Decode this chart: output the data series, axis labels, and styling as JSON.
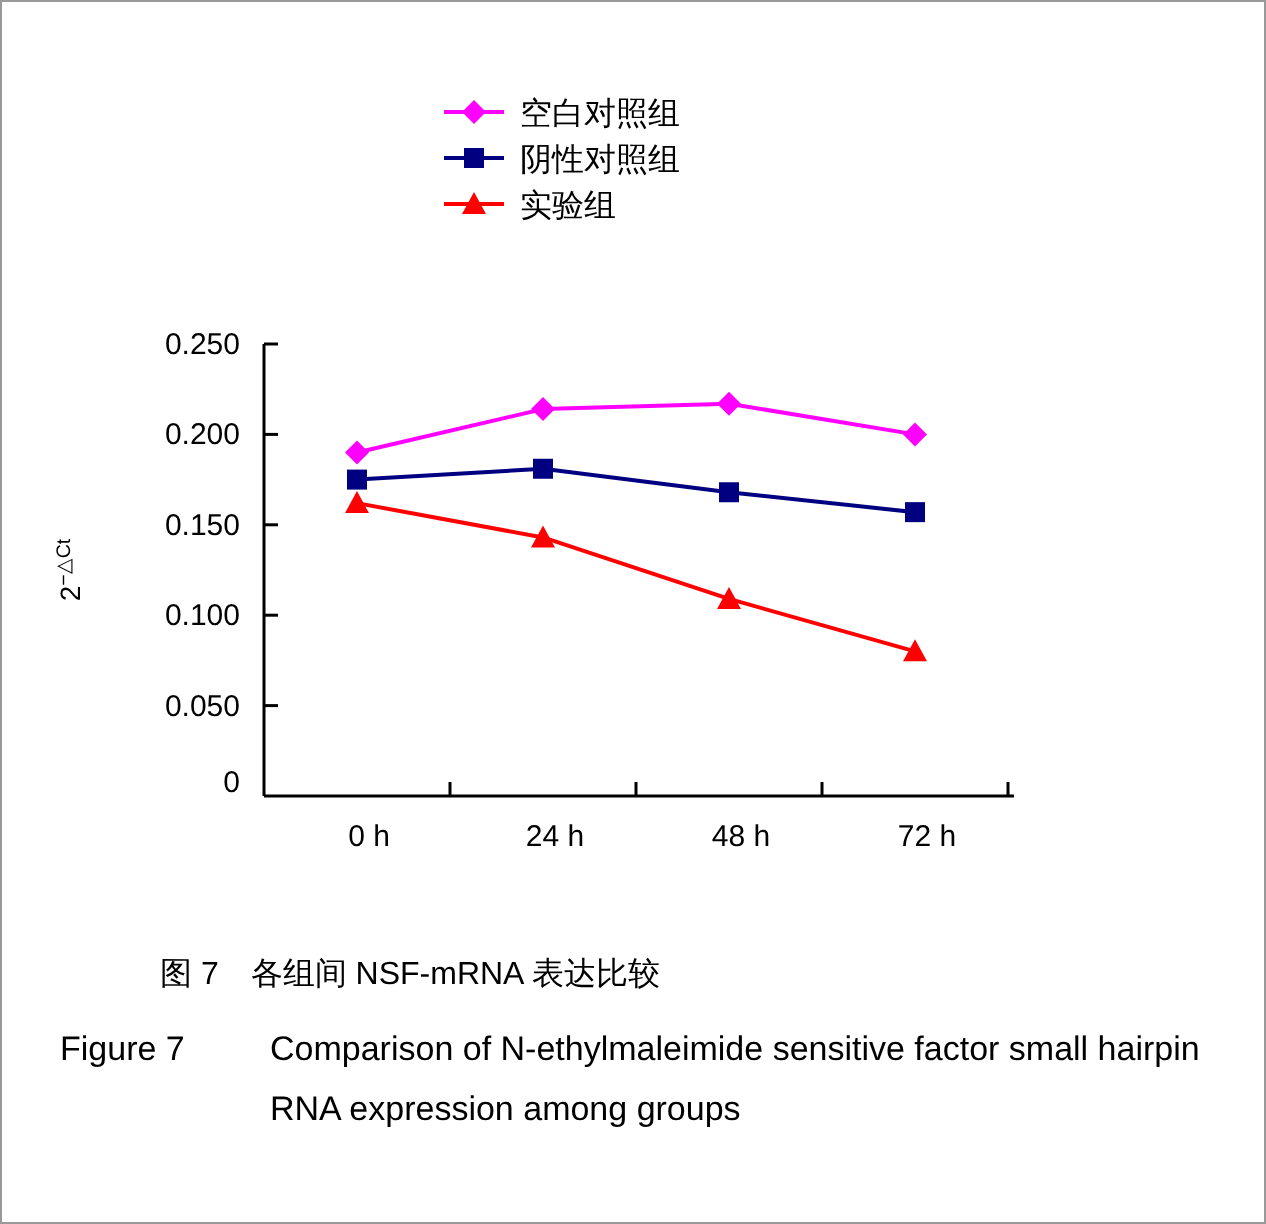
{
  "chart_data": {
    "type": "line",
    "ylabel": "2$^{−△Ct}$",
    "categories": [
      "0 h",
      "24 h",
      "48 h",
      "72 h"
    ],
    "ylim": [
      0,
      0.25
    ],
    "yticks": [
      {
        "value": 0,
        "label": "0"
      },
      {
        "value": 0.05,
        "label": "0.050"
      },
      {
        "value": 0.1,
        "label": "0.100"
      },
      {
        "value": 0.15,
        "label": "0.150"
      },
      {
        "value": 0.2,
        "label": "0.200"
      },
      {
        "value": 0.25,
        "label": "0.250"
      }
    ],
    "series": [
      {
        "name": "空白对照组",
        "color": "#ff00ff",
        "marker": "diamond",
        "values": [
          0.19,
          0.214,
          0.217,
          0.2
        ]
      },
      {
        "name": "阴性对照组",
        "color": "#000080",
        "marker": "square",
        "values": [
          0.175,
          0.181,
          0.168,
          0.157
        ]
      },
      {
        "name": "实验组",
        "color": "#ff0000",
        "marker": "triangle",
        "values": [
          0.162,
          0.143,
          0.109,
          0.08
        ]
      }
    ],
    "legend": "top",
    "grid": false,
    "line_style": "solid",
    "annotations": [
      "图 7　各组间 NSF-mRNA 表达比较",
      "Figure 7　Comparison of N-ethylmaleimide sensitive factor small hairpin RNA expression among groups"
    ]
  }
}
